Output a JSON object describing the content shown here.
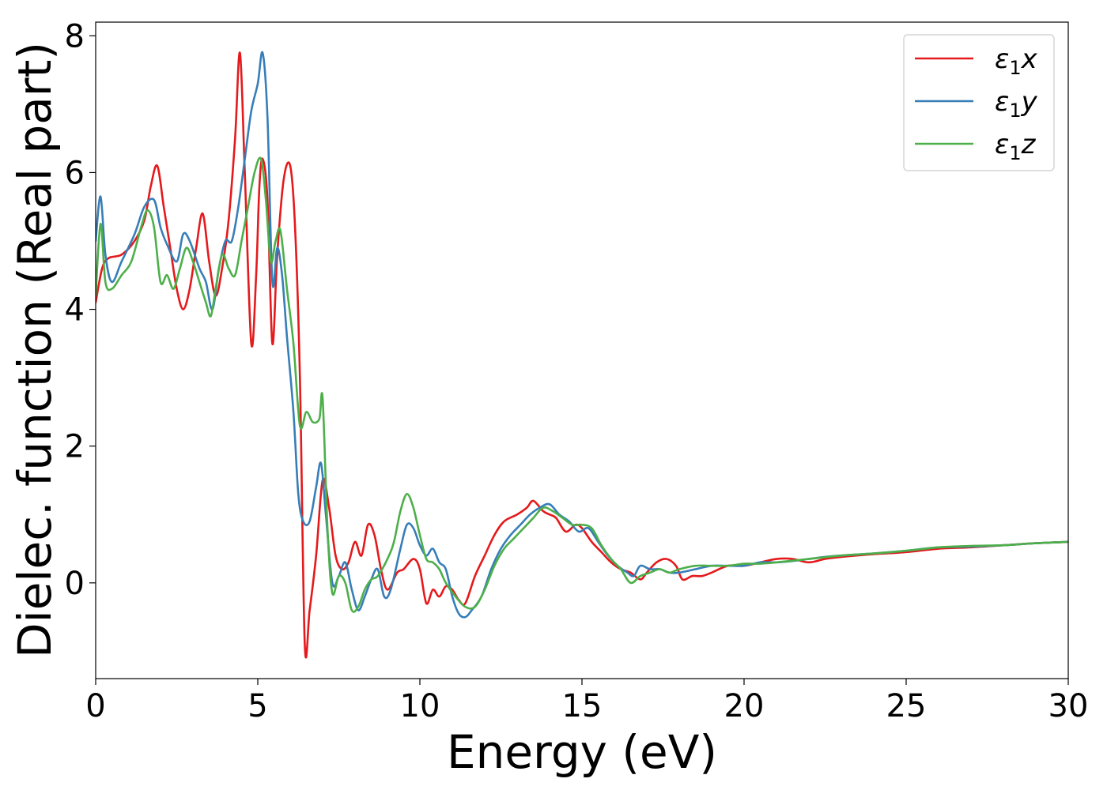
{
  "chart_data": {
    "type": "line",
    "xlabel": "Energy (eV)",
    "ylabel": "Dielec. function (Real part)",
    "xlim": [
      0,
      30
    ],
    "ylim": [
      -1.4,
      8.2
    ],
    "xticks": [
      0,
      5,
      10,
      15,
      20,
      25,
      30
    ],
    "xtick_labels": [
      "0",
      "5",
      "10",
      "15",
      "20",
      "25",
      "30"
    ],
    "yticks": [
      0,
      2,
      4,
      6,
      8
    ],
    "ytick_labels": [
      "0",
      "2",
      "4",
      "6",
      "8"
    ],
    "grid": false,
    "legend_position": "top-right",
    "series": [
      {
        "name": "ε₁x",
        "legend_base": "ε",
        "legend_sub": "1",
        "legend_suffix": "x",
        "color": "#e41a1c",
        "points": [
          [
            0,
            4.1
          ],
          [
            0.2,
            4.6
          ],
          [
            0.4,
            4.75
          ],
          [
            0.8,
            4.8
          ],
          [
            1.2,
            5.0
          ],
          [
            1.5,
            5.3
          ],
          [
            1.7,
            5.8
          ],
          [
            1.9,
            6.1
          ],
          [
            2.1,
            5.5
          ],
          [
            2.3,
            4.9
          ],
          [
            2.5,
            4.3
          ],
          [
            2.7,
            4.0
          ],
          [
            2.9,
            4.3
          ],
          [
            3.1,
            4.9
          ],
          [
            3.3,
            5.4
          ],
          [
            3.5,
            4.7
          ],
          [
            3.7,
            4.2
          ],
          [
            3.9,
            4.6
          ],
          [
            4.1,
            5.3
          ],
          [
            4.3,
            6.5
          ],
          [
            4.45,
            7.75
          ],
          [
            4.6,
            6.0
          ],
          [
            4.8,
            3.5
          ],
          [
            4.95,
            4.5
          ],
          [
            5.05,
            5.8
          ],
          [
            5.15,
            6.2
          ],
          [
            5.3,
            5.6
          ],
          [
            5.45,
            3.5
          ],
          [
            5.6,
            4.8
          ],
          [
            5.8,
            5.9
          ],
          [
            6.0,
            6.1
          ],
          [
            6.15,
            5.2
          ],
          [
            6.3,
            3.0
          ],
          [
            6.45,
            -0.9
          ],
          [
            6.6,
            -0.4
          ],
          [
            6.8,
            0.4
          ],
          [
            7.0,
            1.5
          ],
          [
            7.2,
            1.1
          ],
          [
            7.4,
            0.4
          ],
          [
            7.6,
            0.2
          ],
          [
            7.8,
            0.3
          ],
          [
            8.0,
            0.6
          ],
          [
            8.2,
            0.4
          ],
          [
            8.4,
            0.85
          ],
          [
            8.6,
            0.7
          ],
          [
            8.8,
            0.2
          ],
          [
            9.0,
            -0.1
          ],
          [
            9.3,
            0.15
          ],
          [
            9.5,
            0.2
          ],
          [
            9.8,
            0.35
          ],
          [
            10.0,
            0.2
          ],
          [
            10.2,
            -0.3
          ],
          [
            10.4,
            -0.1
          ],
          [
            10.6,
            -0.2
          ],
          [
            10.8,
            -0.05
          ],
          [
            11.0,
            -0.1
          ],
          [
            11.2,
            -0.25
          ],
          [
            11.4,
            -0.3
          ],
          [
            11.7,
            0.1
          ],
          [
            12.0,
            0.4
          ],
          [
            12.3,
            0.7
          ],
          [
            12.6,
            0.9
          ],
          [
            13.0,
            1.0
          ],
          [
            13.3,
            1.1
          ],
          [
            13.5,
            1.2
          ],
          [
            13.8,
            1.05
          ],
          [
            14.0,
            1.0
          ],
          [
            14.2,
            0.95
          ],
          [
            14.5,
            0.75
          ],
          [
            14.8,
            0.85
          ],
          [
            15.0,
            0.8
          ],
          [
            15.3,
            0.6
          ],
          [
            15.6,
            0.45
          ],
          [
            15.9,
            0.3
          ],
          [
            16.2,
            0.2
          ],
          [
            16.5,
            0.15
          ],
          [
            16.8,
            0.05
          ],
          [
            17.0,
            0.15
          ],
          [
            17.3,
            0.3
          ],
          [
            17.6,
            0.35
          ],
          [
            17.9,
            0.25
          ],
          [
            18.1,
            0.05
          ],
          [
            18.4,
            0.1
          ],
          [
            18.7,
            0.1
          ],
          [
            19.0,
            0.15
          ],
          [
            19.5,
            0.25
          ],
          [
            20.0,
            0.25
          ],
          [
            20.5,
            0.3
          ],
          [
            21.0,
            0.35
          ],
          [
            21.5,
            0.35
          ],
          [
            22.0,
            0.3
          ],
          [
            22.5,
            0.35
          ],
          [
            23.0,
            0.38
          ],
          [
            24.0,
            0.42
          ],
          [
            25.0,
            0.45
          ],
          [
            26.0,
            0.5
          ],
          [
            27.0,
            0.52
          ],
          [
            28.0,
            0.55
          ],
          [
            29.0,
            0.58
          ],
          [
            30.0,
            0.6
          ]
        ]
      },
      {
        "name": "ε₁y",
        "legend_base": "ε",
        "legend_sub": "1",
        "legend_suffix": "y",
        "color": "#377eb8",
        "points": [
          [
            0,
            5.0
          ],
          [
            0.15,
            5.65
          ],
          [
            0.3,
            4.8
          ],
          [
            0.5,
            4.4
          ],
          [
            0.8,
            4.7
          ],
          [
            1.2,
            5.1
          ],
          [
            1.5,
            5.5
          ],
          [
            1.8,
            5.6
          ],
          [
            2.0,
            5.2
          ],
          [
            2.2,
            4.95
          ],
          [
            2.5,
            4.7
          ],
          [
            2.7,
            5.1
          ],
          [
            2.9,
            5.0
          ],
          [
            3.2,
            4.6
          ],
          [
            3.4,
            4.4
          ],
          [
            3.6,
            4.0
          ],
          [
            3.8,
            4.6
          ],
          [
            4.0,
            5.0
          ],
          [
            4.2,
            5.0
          ],
          [
            4.4,
            5.5
          ],
          [
            4.6,
            6.2
          ],
          [
            4.8,
            6.9
          ],
          [
            5.0,
            7.3
          ],
          [
            5.15,
            7.75
          ],
          [
            5.3,
            6.8
          ],
          [
            5.45,
            4.4
          ],
          [
            5.6,
            4.9
          ],
          [
            5.75,
            4.5
          ],
          [
            5.9,
            3.6
          ],
          [
            6.1,
            2.5
          ],
          [
            6.25,
            1.3
          ],
          [
            6.4,
            0.9
          ],
          [
            6.6,
            0.9
          ],
          [
            6.8,
            1.4
          ],
          [
            6.95,
            1.75
          ],
          [
            7.1,
            1.0
          ],
          [
            7.3,
            0.0
          ],
          [
            7.5,
            0.1
          ],
          [
            7.7,
            0.3
          ],
          [
            7.9,
            -0.1
          ],
          [
            8.1,
            -0.4
          ],
          [
            8.3,
            -0.2
          ],
          [
            8.5,
            0.05
          ],
          [
            8.7,
            0.2
          ],
          [
            8.9,
            -0.2
          ],
          [
            9.1,
            -0.1
          ],
          [
            9.4,
            0.5
          ],
          [
            9.6,
            0.85
          ],
          [
            9.8,
            0.8
          ],
          [
            10.0,
            0.55
          ],
          [
            10.2,
            0.4
          ],
          [
            10.4,
            0.5
          ],
          [
            10.6,
            0.3
          ],
          [
            10.8,
            0.2
          ],
          [
            11.0,
            -0.2
          ],
          [
            11.2,
            -0.45
          ],
          [
            11.4,
            -0.5
          ],
          [
            11.6,
            -0.4
          ],
          [
            11.9,
            -0.2
          ],
          [
            12.2,
            0.2
          ],
          [
            12.5,
            0.5
          ],
          [
            12.8,
            0.7
          ],
          [
            13.1,
            0.85
          ],
          [
            13.4,
            1.0
          ],
          [
            13.7,
            1.1
          ],
          [
            14.0,
            1.15
          ],
          [
            14.3,
            1.0
          ],
          [
            14.6,
            0.9
          ],
          [
            14.9,
            0.75
          ],
          [
            15.2,
            0.8
          ],
          [
            15.5,
            0.6
          ],
          [
            15.8,
            0.4
          ],
          [
            16.1,
            0.25
          ],
          [
            16.4,
            0.15
          ],
          [
            16.6,
            0.1
          ],
          [
            16.8,
            0.25
          ],
          [
            17.1,
            0.2
          ],
          [
            17.4,
            0.2
          ],
          [
            17.7,
            0.15
          ],
          [
            18.0,
            0.15
          ],
          [
            18.5,
            0.2
          ],
          [
            19.0,
            0.25
          ],
          [
            19.5,
            0.25
          ],
          [
            20.0,
            0.25
          ],
          [
            20.5,
            0.3
          ],
          [
            21.0,
            0.3
          ],
          [
            21.5,
            0.32
          ],
          [
            22.0,
            0.35
          ],
          [
            22.5,
            0.38
          ],
          [
            23.0,
            0.4
          ],
          [
            24.0,
            0.43
          ],
          [
            25.0,
            0.47
          ],
          [
            26.0,
            0.52
          ],
          [
            27.0,
            0.53
          ],
          [
            28.0,
            0.55
          ],
          [
            29.0,
            0.58
          ],
          [
            30.0,
            0.6
          ]
        ]
      },
      {
        "name": "ε₁z",
        "legend_base": "ε",
        "legend_sub": "1",
        "legend_suffix": "z",
        "color": "#4daf4a",
        "points": [
          [
            0,
            4.2
          ],
          [
            0.15,
            5.25
          ],
          [
            0.3,
            4.4
          ],
          [
            0.5,
            4.3
          ],
          [
            0.8,
            4.5
          ],
          [
            1.1,
            4.7
          ],
          [
            1.4,
            5.2
          ],
          [
            1.6,
            5.45
          ],
          [
            1.8,
            5.2
          ],
          [
            2.0,
            4.4
          ],
          [
            2.2,
            4.5
          ],
          [
            2.4,
            4.3
          ],
          [
            2.6,
            4.6
          ],
          [
            2.8,
            4.9
          ],
          [
            3.0,
            4.7
          ],
          [
            3.2,
            4.4
          ],
          [
            3.4,
            4.1
          ],
          [
            3.55,
            3.9
          ],
          [
            3.7,
            4.3
          ],
          [
            3.9,
            4.8
          ],
          [
            4.1,
            4.6
          ],
          [
            4.3,
            4.5
          ],
          [
            4.5,
            5.0
          ],
          [
            4.7,
            5.5
          ],
          [
            4.9,
            6.0
          ],
          [
            5.1,
            6.2
          ],
          [
            5.25,
            5.6
          ],
          [
            5.4,
            4.7
          ],
          [
            5.55,
            5.0
          ],
          [
            5.7,
            5.15
          ],
          [
            5.9,
            4.3
          ],
          [
            6.1,
            3.5
          ],
          [
            6.3,
            2.3
          ],
          [
            6.5,
            2.5
          ],
          [
            6.7,
            2.35
          ],
          [
            6.9,
            2.4
          ],
          [
            7.0,
            2.7
          ],
          [
            7.15,
            0.8
          ],
          [
            7.3,
            -0.15
          ],
          [
            7.5,
            0.1
          ],
          [
            7.7,
            0.0
          ],
          [
            7.9,
            -0.4
          ],
          [
            8.1,
            -0.35
          ],
          [
            8.3,
            -0.1
          ],
          [
            8.5,
            0.05
          ],
          [
            8.7,
            0.1
          ],
          [
            9.0,
            0.35
          ],
          [
            9.2,
            0.6
          ],
          [
            9.4,
            1.05
          ],
          [
            9.6,
            1.3
          ],
          [
            9.8,
            1.1
          ],
          [
            10.0,
            0.7
          ],
          [
            10.2,
            0.35
          ],
          [
            10.4,
            0.3
          ],
          [
            10.6,
            0.2
          ],
          [
            10.8,
            0.0
          ],
          [
            11.1,
            -0.2
          ],
          [
            11.4,
            -0.35
          ],
          [
            11.7,
            -0.35
          ],
          [
            12.0,
            -0.1
          ],
          [
            12.3,
            0.25
          ],
          [
            12.6,
            0.5
          ],
          [
            12.9,
            0.65
          ],
          [
            13.2,
            0.8
          ],
          [
            13.5,
            0.95
          ],
          [
            13.8,
            1.1
          ],
          [
            14.1,
            1.05
          ],
          [
            14.4,
            0.95
          ],
          [
            14.7,
            0.85
          ],
          [
            15.0,
            0.85
          ],
          [
            15.3,
            0.8
          ],
          [
            15.6,
            0.55
          ],
          [
            15.9,
            0.35
          ],
          [
            16.2,
            0.2
          ],
          [
            16.5,
            0.0
          ],
          [
            16.8,
            0.1
          ],
          [
            17.1,
            0.15
          ],
          [
            17.4,
            0.2
          ],
          [
            17.7,
            0.15
          ],
          [
            18.0,
            0.2
          ],
          [
            18.5,
            0.25
          ],
          [
            19.0,
            0.25
          ],
          [
            19.5,
            0.25
          ],
          [
            20.0,
            0.28
          ],
          [
            20.5,
            0.28
          ],
          [
            21.0,
            0.3
          ],
          [
            22.0,
            0.35
          ],
          [
            23.0,
            0.4
          ],
          [
            24.0,
            0.43
          ],
          [
            25.0,
            0.47
          ],
          [
            26.0,
            0.52
          ],
          [
            27.0,
            0.54
          ],
          [
            28.0,
            0.55
          ],
          [
            29.0,
            0.58
          ],
          [
            30.0,
            0.6
          ]
        ]
      }
    ]
  }
}
